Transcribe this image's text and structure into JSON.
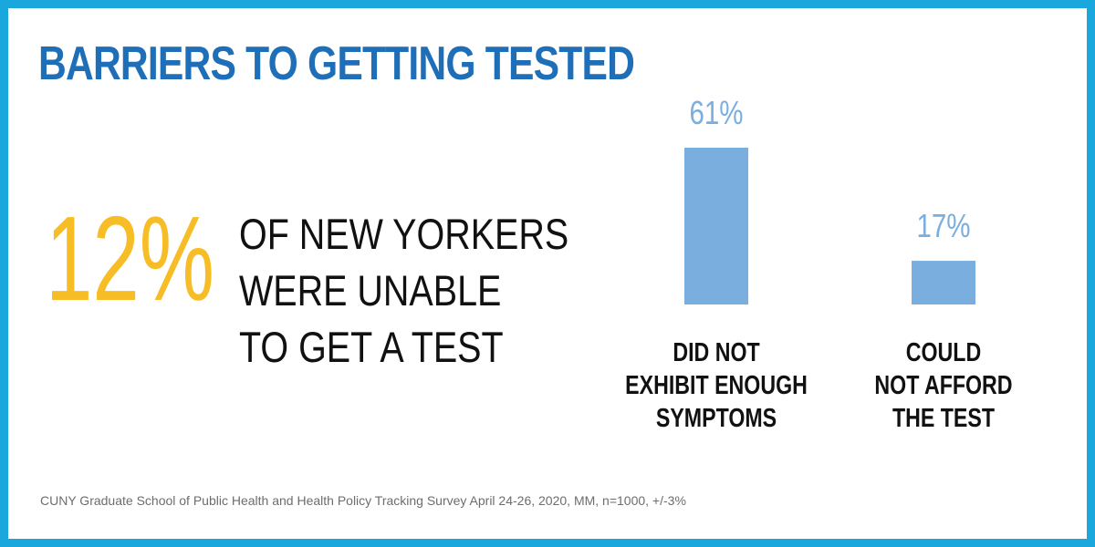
{
  "title": "BARRIERS TO GETTING TESTED",
  "headline_stat": {
    "value": "12%",
    "text_lines": [
      "OF NEW YORKERS",
      "WERE UNABLE",
      "TO GET A TEST"
    ]
  },
  "source": "CUNY Graduate School of Public Health and Health Policy Tracking Survey April 24-26, 2020, MM, n=1000, +/-3%",
  "colors": {
    "border": "#1aa7dd",
    "title": "#1f6fb8",
    "stat": "#f7bd26",
    "bar": "#7aaedf",
    "value_label": "#7aaedf",
    "category_label": "#111111"
  },
  "chart_data": {
    "type": "bar",
    "categories": [
      [
        "DID NOT",
        "EXHIBIT ENOUGH",
        "SYMPTOMS"
      ],
      [
        "COULD",
        "NOT AFFORD",
        "THE TEST"
      ]
    ],
    "values": [
      61,
      17
    ],
    "value_labels": [
      "61%",
      "17%"
    ],
    "unit": "%",
    "grid": false,
    "axes_visible": false
  }
}
